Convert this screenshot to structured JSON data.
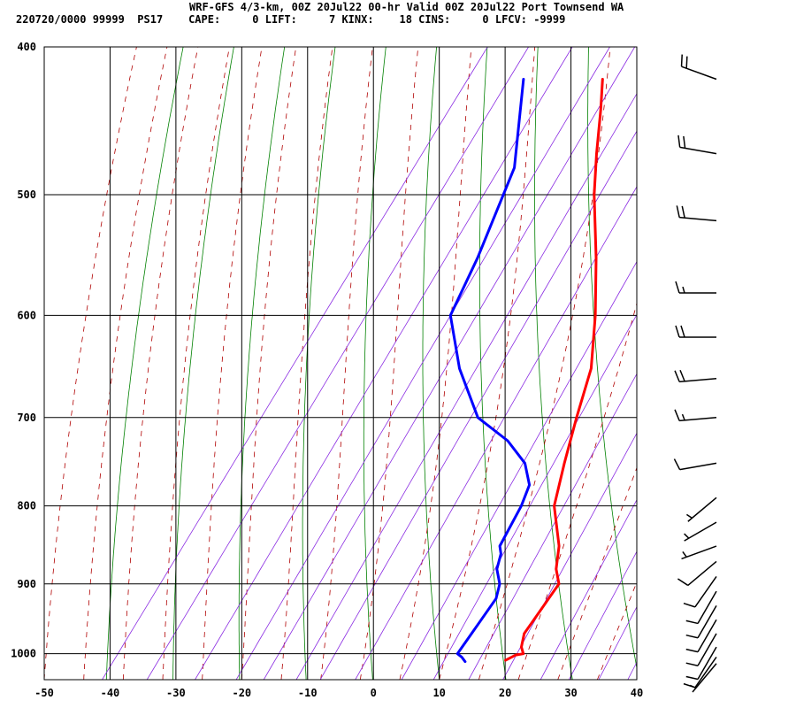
{
  "header": {
    "title": "WRF-GFS 4/3-km, 00Z 20Jul22 00-hr Valid 00Z 20Jul22 Port Townsend WA",
    "stats": "220720/0000 99999  PS17    CAPE:     0 LIFT:     7 KINX:    18 CINS:     0 LFCV: -9999"
  },
  "colors": {
    "temperature": "#ff0000",
    "dewpoint": "#0000ff",
    "isotherm": "#000000",
    "isobar": "#000000",
    "dry_adiabat": "#008000",
    "moist_adiabat": "#b00000",
    "mixing_ratio": "#8a2be2",
    "wind_barb": "#000000"
  },
  "chart_data": {
    "type": "skew-t",
    "xlim": [
      -50,
      40
    ],
    "ylim": [
      1040,
      400
    ],
    "y_scale": "log",
    "x_ticks": [
      -50,
      -40,
      -30,
      -20,
      -10,
      0,
      10,
      20,
      30,
      40
    ],
    "p_ticks": [
      400,
      500,
      600,
      700,
      800,
      900,
      1000
    ],
    "x_tick_labels": [
      "-50",
      "-40",
      "-30",
      "-20",
      "-10",
      "0",
      "10",
      "20",
      "30",
      "40"
    ],
    "p_tick_labels": [
      "400",
      "500",
      "600",
      "700",
      "800",
      "900",
      "1000"
    ],
    "grid": true,
    "series": [
      {
        "key": "temperature",
        "p": [
          1010,
          1002,
          1000,
          990,
          970,
          955,
          940,
          920,
          900,
          880,
          850,
          800,
          750,
          700,
          650,
          600,
          550,
          500,
          470,
          440,
          420
        ],
        "t": [
          18,
          19,
          20,
          19,
          18,
          18,
          18,
          18,
          18,
          16,
          14,
          9,
          6,
          3,
          0,
          -5,
          -11,
          -18,
          -22,
          -26,
          -29
        ]
      },
      {
        "key": "dewpoint",
        "p": [
          1012,
          1005,
          1000,
          990,
          970,
          950,
          920,
          900,
          880,
          860,
          850,
          800,
          775,
          750,
          725,
          700,
          650,
          600,
          550,
          480,
          420
        ],
        "td": [
          12,
          11,
          10,
          10,
          10,
          10,
          10,
          9,
          7,
          6,
          5,
          4,
          3,
          0,
          -5,
          -12,
          -20,
          -27,
          -29,
          -33,
          -41
        ]
      }
    ],
    "wind_barbs": [
      {
        "p": 420,
        "dir": 290,
        "spd": 20
      },
      {
        "p": 470,
        "dir": 280,
        "spd": 20
      },
      {
        "p": 520,
        "dir": 275,
        "spd": 20
      },
      {
        "p": 580,
        "dir": 270,
        "spd": 15
      },
      {
        "p": 620,
        "dir": 270,
        "spd": 20
      },
      {
        "p": 660,
        "dir": 265,
        "spd": 20
      },
      {
        "p": 700,
        "dir": 265,
        "spd": 15
      },
      {
        "p": 750,
        "dir": 260,
        "spd": 10
      },
      {
        "p": 790,
        "dir": 230,
        "spd": 5
      },
      {
        "p": 820,
        "dir": 240,
        "spd": 5
      },
      {
        "p": 850,
        "dir": 250,
        "spd": 5
      },
      {
        "p": 870,
        "dir": 230,
        "spd": 10
      },
      {
        "p": 890,
        "dir": 215,
        "spd": 10
      },
      {
        "p": 910,
        "dir": 210,
        "spd": 10
      },
      {
        "p": 930,
        "dir": 210,
        "spd": 10
      },
      {
        "p": 950,
        "dir": 210,
        "spd": 10
      },
      {
        "p": 970,
        "dir": 210,
        "spd": 10
      },
      {
        "p": 990,
        "dir": 210,
        "spd": 10
      },
      {
        "p": 1005,
        "dir": 215,
        "spd": 10
      },
      {
        "p": 1015,
        "dir": 220,
        "spd": 5
      }
    ]
  }
}
